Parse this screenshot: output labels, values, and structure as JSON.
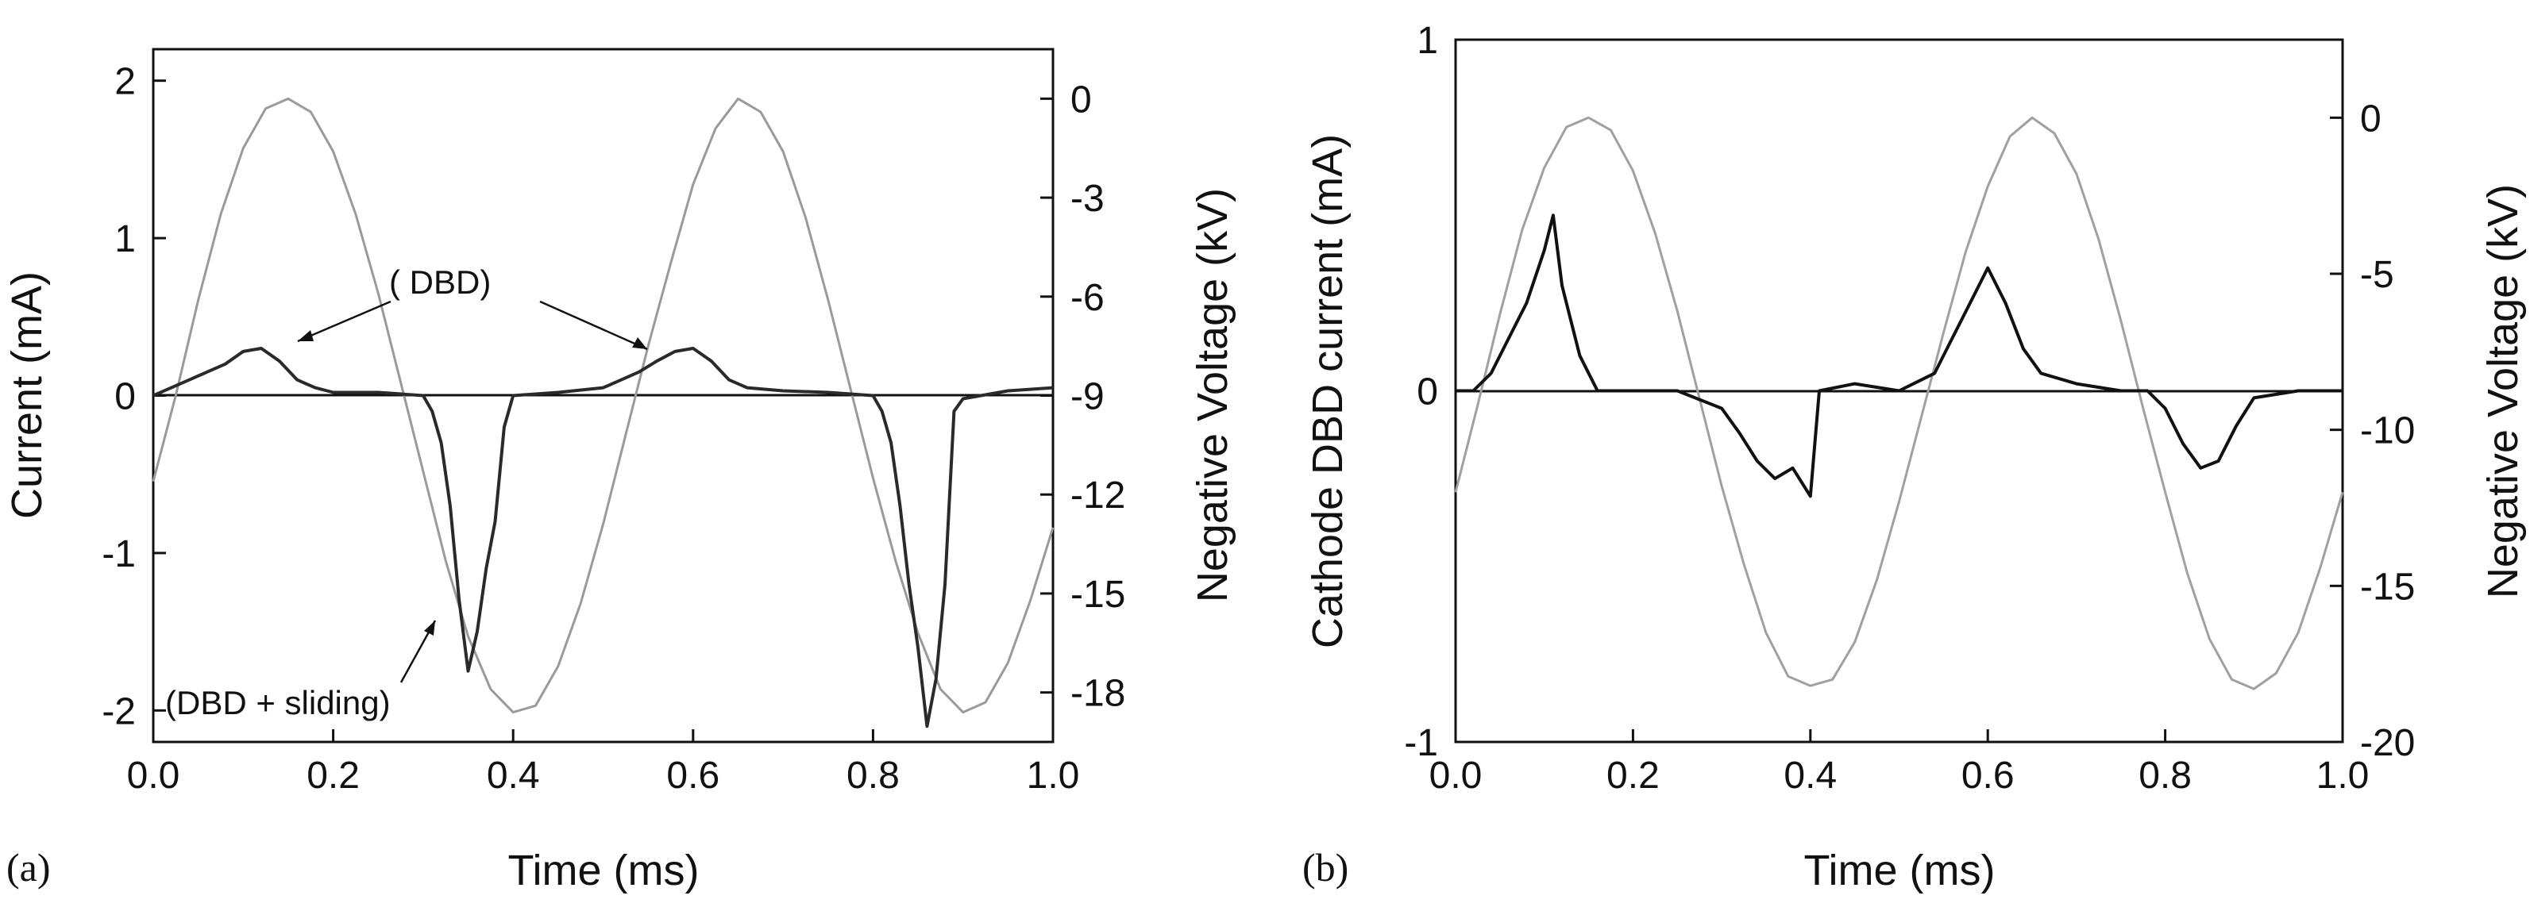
{
  "figure": {
    "panel_a_label": "(a)",
    "panel_b_label": "(b)"
  },
  "chart_data": [
    {
      "type": "line",
      "panel": "(a)",
      "xlabel": "Time (ms)",
      "ylabel": "Current (mA)",
      "y2label": "Negative Voltage (kV)",
      "xlim": [
        0,
        1.0
      ],
      "ylim": [
        -2.2,
        2.2
      ],
      "y2lim": [
        -19.5,
        1.5
      ],
      "xticks": [
        "0.0",
        "0.2",
        "0.4",
        "0.6",
        "0.8",
        "1.0"
      ],
      "yticks": [
        "-2",
        "-1",
        "0",
        "1",
        "2"
      ],
      "y2ticks": [
        "0",
        "-3",
        "-6",
        "-9",
        "-12",
        "-15",
        "-18"
      ],
      "grid": false,
      "annotations": [
        {
          "text": "( DBD)"
        },
        {
          "text": "(DBD + sliding)"
        }
      ],
      "series": [
        {
          "axis": "right",
          "color": "#9a9a9a",
          "x": [
            0.0,
            0.025,
            0.05,
            0.075,
            0.1,
            0.125,
            0.15,
            0.175,
            0.2,
            0.225,
            0.25,
            0.275,
            0.3,
            0.325,
            0.35,
            0.375,
            0.4,
            0.425,
            0.45,
            0.475,
            0.5,
            0.525,
            0.55,
            0.575,
            0.6,
            0.625,
            0.65,
            0.675,
            0.7,
            0.725,
            0.75,
            0.775,
            0.8,
            0.825,
            0.85,
            0.875,
            0.9,
            0.925,
            0.95,
            0.975,
            1.0
          ],
          "y": [
            -11.6,
            -9.0,
            -6.1,
            -3.5,
            -1.5,
            -0.3,
            0.0,
            -0.4,
            -1.6,
            -3.5,
            -5.9,
            -8.6,
            -11.3,
            -14.0,
            -16.3,
            -17.9,
            -18.6,
            -18.4,
            -17.2,
            -15.3,
            -12.9,
            -10.2,
            -7.5,
            -5.0,
            -2.6,
            -0.9,
            0.0,
            -0.4,
            -1.6,
            -3.6,
            -6.1,
            -8.8,
            -11.5,
            -14.0,
            -16.2,
            -17.9,
            -18.6,
            -18.3,
            -17.1,
            -15.2,
            -13.0
          ]
        },
        {
          "axis": "left",
          "color": "#2a2a2a",
          "x": [
            0.0,
            0.02,
            0.04,
            0.06,
            0.08,
            0.1,
            0.12,
            0.14,
            0.16,
            0.18,
            0.2,
            0.25,
            0.3,
            0.31,
            0.32,
            0.33,
            0.34,
            0.35,
            0.36,
            0.37,
            0.38,
            0.39,
            0.4,
            0.45,
            0.5,
            0.52,
            0.54,
            0.56,
            0.58,
            0.6,
            0.62,
            0.64,
            0.66,
            0.7,
            0.75,
            0.8,
            0.81,
            0.82,
            0.83,
            0.84,
            0.85,
            0.86,
            0.87,
            0.88,
            0.89,
            0.9,
            0.95,
            1.0
          ],
          "y": [
            0.0,
            0.05,
            0.1,
            0.15,
            0.2,
            0.28,
            0.3,
            0.22,
            0.1,
            0.05,
            0.02,
            0.02,
            0.0,
            -0.1,
            -0.3,
            -0.7,
            -1.3,
            -1.75,
            -1.5,
            -1.1,
            -0.8,
            -0.2,
            0.0,
            0.02,
            0.05,
            0.1,
            0.15,
            0.22,
            0.28,
            0.3,
            0.22,
            0.1,
            0.05,
            0.03,
            0.02,
            0.0,
            -0.1,
            -0.3,
            -0.7,
            -1.2,
            -1.6,
            -2.1,
            -1.8,
            -1.2,
            -0.1,
            -0.02,
            0.03,
            0.05
          ]
        }
      ]
    },
    {
      "type": "line",
      "panel": "(b)",
      "xlabel": "Time (ms)",
      "ylabel": "Cathode DBD current (mA)",
      "y2label": "Negative Voltage (kV)",
      "xlim": [
        0,
        1.0
      ],
      "ylim": [
        -1,
        1
      ],
      "y2lim": [
        -20,
        2.5
      ],
      "xticks": [
        "0.0",
        "0.2",
        "0.4",
        "0.6",
        "0.8",
        "1.0"
      ],
      "yticks": [
        "-1",
        "0",
        "1"
      ],
      "y2ticks": [
        "0",
        "-5",
        "-10",
        "-15",
        "-20"
      ],
      "grid": false,
      "series": [
        {
          "axis": "right",
          "color": "#a0a0a0",
          "x": [
            0.0,
            0.025,
            0.05,
            0.075,
            0.1,
            0.125,
            0.15,
            0.175,
            0.2,
            0.225,
            0.25,
            0.275,
            0.3,
            0.325,
            0.35,
            0.375,
            0.4,
            0.425,
            0.45,
            0.475,
            0.5,
            0.525,
            0.55,
            0.575,
            0.6,
            0.625,
            0.65,
            0.675,
            0.7,
            0.725,
            0.75,
            0.775,
            0.8,
            0.825,
            0.85,
            0.875,
            0.9,
            0.925,
            0.95,
            0.975,
            1.0
          ],
          "y": [
            -12.0,
            -9.2,
            -6.3,
            -3.6,
            -1.6,
            -0.3,
            0.0,
            -0.4,
            -1.7,
            -3.7,
            -6.2,
            -9.0,
            -11.8,
            -14.3,
            -16.5,
            -17.9,
            -18.2,
            -18.0,
            -16.8,
            -14.8,
            -12.3,
            -9.6,
            -6.9,
            -4.3,
            -2.2,
            -0.6,
            0.0,
            -0.5,
            -1.8,
            -3.9,
            -6.5,
            -9.3,
            -12.0,
            -14.6,
            -16.7,
            -18.0,
            -18.3,
            -17.8,
            -16.5,
            -14.4,
            -12.0
          ]
        },
        {
          "axis": "left",
          "color": "#111111",
          "x": [
            0.0,
            0.02,
            0.04,
            0.06,
            0.08,
            0.1,
            0.11,
            0.12,
            0.14,
            0.16,
            0.2,
            0.25,
            0.3,
            0.32,
            0.34,
            0.36,
            0.38,
            0.4,
            0.41,
            0.45,
            0.5,
            0.54,
            0.56,
            0.58,
            0.6,
            0.62,
            0.64,
            0.66,
            0.7,
            0.75,
            0.78,
            0.8,
            0.82,
            0.84,
            0.86,
            0.88,
            0.9,
            0.95,
            1.0
          ],
          "y": [
            0.0,
            0.0,
            0.05,
            0.15,
            0.25,
            0.4,
            0.5,
            0.3,
            0.1,
            0.0,
            0.0,
            0.0,
            -0.05,
            -0.12,
            -0.2,
            -0.25,
            -0.22,
            -0.3,
            0.0,
            0.02,
            0.0,
            0.05,
            0.15,
            0.25,
            0.35,
            0.25,
            0.12,
            0.05,
            0.02,
            0.0,
            0.0,
            -0.05,
            -0.15,
            -0.22,
            -0.2,
            -0.1,
            -0.02,
            0.0,
            0.0
          ]
        }
      ]
    }
  ]
}
